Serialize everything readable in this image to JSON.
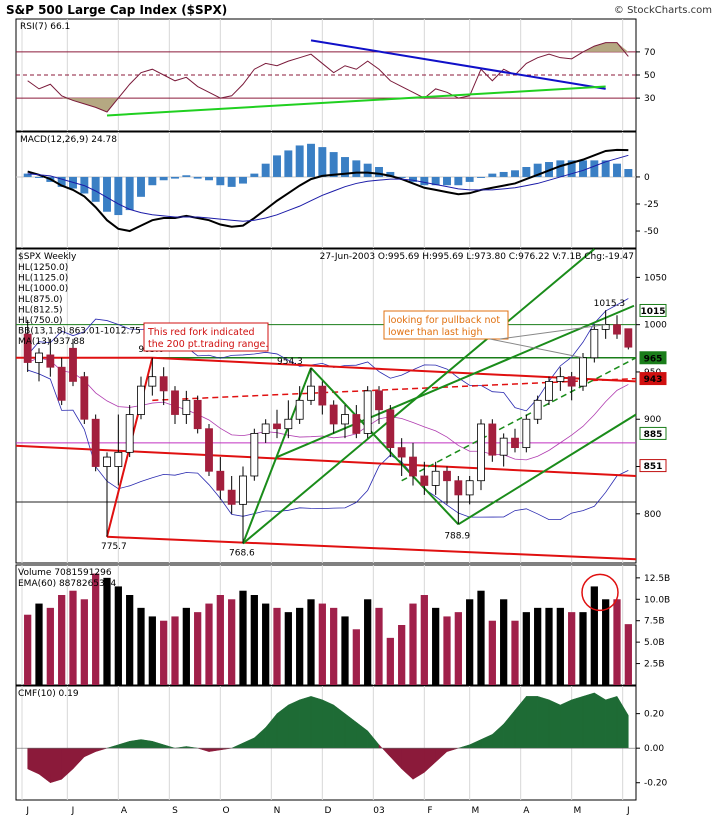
{
  "header": {
    "title": "S&P 500 Large Cap Index ($SPX)",
    "credit": "© StockCharts.com"
  },
  "colors": {
    "up_candle": "#ffffff",
    "down_candle": "#a31f3d",
    "volume_up": "#000000",
    "volume_down": "#a0204a",
    "macd_hist": "#3a7fc4",
    "macd_line": "#000000",
    "signal_line": "#1b1ba8",
    "rsi_line": "#7a1a3a",
    "rsi_fill": "#b5a882",
    "cmf_pos": "#1e6b35",
    "cmf_neg": "#8b1a3a",
    "pitchfork_green": "#1a8c1a",
    "pitchfork_red": "#e01010",
    "bb_line": "#2a2ab0",
    "ma_line": "#b03cb0",
    "trend_blue": "#1010c8",
    "trend_green": "#20d020",
    "price_label_bg": "#1a7d1a"
  },
  "rsi": {
    "label": "RSI(7) 66.1",
    "ticks": [
      "70",
      "50",
      "30"
    ],
    "levels": [
      70,
      50,
      30
    ]
  },
  "macd": {
    "label": "MACD(12,26,9) 24.78",
    "ticks": [
      "0",
      "-25",
      "-50"
    ]
  },
  "price": {
    "label": "$SPX Weekly",
    "ohlc": "27-Jun-2003 O:995.69 H:995.69 L:973.80 C:976.22 V:7.1B Chg:-19.47",
    "legend": [
      {
        "text": "HL(1250.0)",
        "color": "#1a1ab0"
      },
      {
        "text": "HL(1125.0)",
        "color": "#c01010"
      },
      {
        "text": "HL(1000.0)",
        "color": "#1a7d1a"
      },
      {
        "text": "HL(875.0)",
        "color": "#c030c0"
      },
      {
        "text": "HL(812.5)",
        "color": "#202020"
      },
      {
        "text": "HL(750.0)",
        "color": "#e07010"
      },
      {
        "text": "BB(13,1.8) 863.01-1012.75",
        "color": "#1a1ab0"
      },
      {
        "text": "MA(13) 937.88",
        "color": "#c030c0"
      }
    ],
    "ticks": [
      "1050",
      "1000",
      "950",
      "900",
      "850",
      "800"
    ],
    "tick_values": [
      1050,
      1000,
      950,
      900,
      850,
      800
    ],
    "ylim": [
      748,
      1080
    ],
    "annotations": {
      "red_fork": "This red fork indicated\nthe 200 pt.trading range.",
      "pullback": "looking for pullback not\nlower than last high",
      "p965": "965.0",
      "p954": "954.3",
      "p775": "775.7",
      "p768": "768.6",
      "p788": "788.9",
      "p1015": "1015.3"
    },
    "side_labels": [
      {
        "text": "1015",
        "value": 1015,
        "bg": "#ffffff",
        "fg": "#000000",
        "border": "#1a7d1a"
      },
      {
        "text": "965",
        "value": 965,
        "bg": "#1a7d1a",
        "fg": "#ffffff",
        "border": "#1a7d1a"
      },
      {
        "text": "943",
        "value": 943,
        "bg": "#d01010",
        "fg": "#ffffff",
        "border": "#d01010"
      },
      {
        "text": "885",
        "value": 885,
        "bg": "#ffffff",
        "fg": "#1a7d1a",
        "border": "#1a7d1a"
      },
      {
        "text": "851",
        "value": 851,
        "bg": "#ffffff",
        "fg": "#c01010",
        "border": "#c01010"
      }
    ]
  },
  "volume": {
    "label": "Volume 7081591296",
    "ema_label": "EMA(60) 8878265344",
    "ticks": [
      "12.5B",
      "10.0B",
      "7.5B",
      "5.0B",
      "2.5B"
    ],
    "tick_values": [
      12.5,
      10.0,
      7.5,
      5.0,
      2.5
    ],
    "ylim": [
      0,
      14
    ]
  },
  "cmf": {
    "label": "CMF(10) 0.19",
    "ticks": [
      "0.20",
      "0.00",
      "-0.20"
    ],
    "tick_values": [
      0.2,
      0.0,
      -0.2
    ],
    "ylim": [
      -0.3,
      0.36
    ]
  },
  "xaxis": {
    "labels": [
      "J",
      "J",
      "A",
      "S",
      "O",
      "N",
      "D",
      "03",
      "F",
      "M",
      "A",
      "M",
      "J"
    ],
    "label_weeks": [
      0,
      4,
      8.5,
      13,
      17.5,
      22,
      26.5,
      31,
      35.5,
      39.5,
      44,
      48.5,
      53
    ]
  },
  "chart_data": {
    "type": "candlestick",
    "title": "S&P 500 Large Cap Index ($SPX)",
    "period": "weekly",
    "x_range": "Jun-2002 to Jun-2003",
    "candles": [
      {
        "o": 990,
        "h": 1005,
        "l": 950,
        "c": 960
      },
      {
        "o": 960,
        "h": 975,
        "l": 940,
        "c": 970
      },
      {
        "o": 968,
        "h": 985,
        "l": 945,
        "c": 955
      },
      {
        "o": 955,
        "h": 965,
        "l": 915,
        "c": 920
      },
      {
        "o": 975,
        "h": 985,
        "l": 935,
        "c": 940
      },
      {
        "o": 945,
        "h": 950,
        "l": 895,
        "c": 900
      },
      {
        "o": 900,
        "h": 905,
        "l": 845,
        "c": 850
      },
      {
        "o": 850,
        "h": 865,
        "l": 775.7,
        "c": 860
      },
      {
        "o": 850,
        "h": 905,
        "l": 830,
        "c": 865
      },
      {
        "o": 865,
        "h": 915,
        "l": 860,
        "c": 905
      },
      {
        "o": 905,
        "h": 945,
        "l": 900,
        "c": 935
      },
      {
        "o": 935,
        "h": 965,
        "l": 925,
        "c": 945
      },
      {
        "o": 945,
        "h": 955,
        "l": 915,
        "c": 930
      },
      {
        "o": 930,
        "h": 935,
        "l": 895,
        "c": 905
      },
      {
        "o": 905,
        "h": 930,
        "l": 895,
        "c": 920
      },
      {
        "o": 920,
        "h": 925,
        "l": 885,
        "c": 890
      },
      {
        "o": 890,
        "h": 895,
        "l": 840,
        "c": 845
      },
      {
        "o": 845,
        "h": 860,
        "l": 815,
        "c": 825
      },
      {
        "o": 825,
        "h": 840,
        "l": 800,
        "c": 810
      },
      {
        "o": 810,
        "h": 850,
        "l": 768.6,
        "c": 840
      },
      {
        "o": 840,
        "h": 890,
        "l": 835,
        "c": 885
      },
      {
        "o": 885,
        "h": 900,
        "l": 875,
        "c": 895
      },
      {
        "o": 895,
        "h": 910,
        "l": 880,
        "c": 890
      },
      {
        "o": 890,
        "h": 920,
        "l": 880,
        "c": 900
      },
      {
        "o": 900,
        "h": 935,
        "l": 895,
        "c": 920
      },
      {
        "o": 920,
        "h": 954.3,
        "l": 915,
        "c": 935
      },
      {
        "o": 935,
        "h": 940,
        "l": 905,
        "c": 915
      },
      {
        "o": 915,
        "h": 920,
        "l": 885,
        "c": 895
      },
      {
        "o": 895,
        "h": 915,
        "l": 880,
        "c": 905
      },
      {
        "o": 905,
        "h": 915,
        "l": 880,
        "c": 885
      },
      {
        "o": 885,
        "h": 935,
        "l": 880,
        "c": 930
      },
      {
        "o": 930,
        "h": 935,
        "l": 895,
        "c": 910
      },
      {
        "o": 910,
        "h": 915,
        "l": 860,
        "c": 870
      },
      {
        "o": 870,
        "h": 880,
        "l": 840,
        "c": 860
      },
      {
        "o": 860,
        "h": 875,
        "l": 830,
        "c": 840
      },
      {
        "o": 840,
        "h": 855,
        "l": 820,
        "c": 830
      },
      {
        "o": 830,
        "h": 855,
        "l": 820,
        "c": 845
      },
      {
        "o": 845,
        "h": 850,
        "l": 810,
        "c": 835
      },
      {
        "o": 835,
        "h": 840,
        "l": 788.9,
        "c": 820
      },
      {
        "o": 820,
        "h": 840,
        "l": 810,
        "c": 835
      },
      {
        "o": 835,
        "h": 900,
        "l": 825,
        "c": 895
      },
      {
        "o": 895,
        "h": 900,
        "l": 855,
        "c": 862
      },
      {
        "o": 862,
        "h": 885,
        "l": 850,
        "c": 880
      },
      {
        "o": 880,
        "h": 890,
        "l": 865,
        "c": 870
      },
      {
        "o": 870,
        "h": 905,
        "l": 865,
        "c": 900
      },
      {
        "o": 900,
        "h": 925,
        "l": 895,
        "c": 920
      },
      {
        "o": 920,
        "h": 945,
        "l": 915,
        "c": 940
      },
      {
        "o": 940,
        "h": 955,
        "l": 930,
        "c": 945
      },
      {
        "o": 945,
        "h": 950,
        "l": 920,
        "c": 935
      },
      {
        "o": 935,
        "h": 970,
        "l": 930,
        "c": 965
      },
      {
        "o": 965,
        "h": 1000,
        "l": 960,
        "c": 995
      },
      {
        "o": 995,
        "h": 1015.3,
        "l": 985,
        "c": 1000
      },
      {
        "o": 1000,
        "h": 1010,
        "l": 985,
        "c": 990
      },
      {
        "o": 995.69,
        "h": 995.69,
        "l": 973.8,
        "c": 976.22
      }
    ],
    "volume": [
      8.2,
      9.5,
      9.0,
      10.5,
      11.0,
      10.0,
      13.0,
      12.5,
      11.5,
      10.5,
      9.0,
      8.0,
      7.5,
      8.0,
      9.0,
      8.5,
      9.5,
      10.5,
      10.0,
      11.0,
      10.5,
      9.5,
      9.0,
      8.5,
      9.0,
      10.0,
      9.5,
      9.0,
      8.0,
      6.5,
      10.0,
      9.0,
      5.5,
      7.0,
      9.5,
      10.5,
      9.0,
      8.0,
      8.5,
      10.0,
      11.0,
      7.5,
      10.0,
      7.5,
      8.5,
      9.0,
      9.0,
      9.0,
      8.5,
      8.5,
      11.5,
      10.0,
      10.0,
      7.1
    ],
    "rsi": [
      45,
      38,
      42,
      32,
      28,
      25,
      22,
      18,
      30,
      42,
      52,
      55,
      50,
      45,
      48,
      40,
      35,
      30,
      32,
      42,
      55,
      60,
      58,
      62,
      65,
      68,
      60,
      52,
      58,
      55,
      62,
      55,
      45,
      40,
      35,
      30,
      38,
      35,
      30,
      32,
      55,
      45,
      55,
      50,
      60,
      65,
      68,
      65,
      64,
      70,
      75,
      78,
      78,
      66.1
    ],
    "macd": [
      5,
      2,
      -2,
      -8,
      -12,
      -18,
      -28,
      -40,
      -48,
      -50,
      -45,
      -40,
      -38,
      -38,
      -36,
      -38,
      -40,
      -44,
      -46,
      -45,
      -38,
      -30,
      -22,
      -15,
      -8,
      -2,
      1,
      2,
      3,
      4,
      4,
      3,
      1,
      -2,
      -6,
      -10,
      -12,
      -14,
      -16,
      -15,
      -12,
      -10,
      -8,
      -6,
      -2,
      2,
      6,
      10,
      13,
      16,
      20,
      24,
      25,
      24.78
    ],
    "macd_signal": [
      3,
      2,
      1,
      -2,
      -5,
      -8,
      -13,
      -19,
      -25,
      -30,
      -33,
      -35,
      -36,
      -37,
      -37,
      -37,
      -38,
      -39,
      -40,
      -41,
      -40,
      -38,
      -35,
      -31,
      -27,
      -22,
      -17,
      -13,
      -9,
      -6,
      -4,
      -3,
      -2,
      -2,
      -3,
      -5,
      -7,
      -9,
      -11,
      -12,
      -12,
      -12,
      -11,
      -10,
      -8,
      -6,
      -3,
      0,
      3,
      6,
      10,
      14,
      17,
      20
    ],
    "cmf": [
      -0.12,
      -0.15,
      -0.2,
      -0.18,
      -0.12,
      -0.05,
      -0.02,
      0.0,
      0.02,
      0.04,
      0.05,
      0.04,
      0.02,
      0.0,
      0.01,
      0.0,
      -0.02,
      -0.01,
      0.0,
      0.03,
      0.06,
      0.12,
      0.2,
      0.25,
      0.28,
      0.3,
      0.28,
      0.25,
      0.2,
      0.15,
      0.1,
      0.02,
      -0.05,
      -0.12,
      -0.18,
      -0.14,
      -0.08,
      -0.02,
      0.0,
      0.02,
      0.05,
      0.08,
      0.14,
      0.22,
      0.3,
      0.3,
      0.28,
      0.25,
      0.28,
      0.3,
      0.32,
      0.28,
      0.3,
      0.19
    ]
  }
}
